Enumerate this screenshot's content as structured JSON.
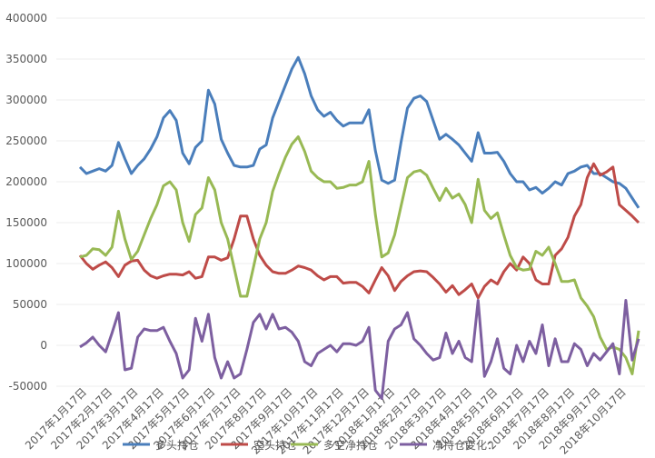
{
  "chart_data": {
    "type": "line",
    "categories": [
      "2017年1月17日",
      null,
      null,
      null,
      "2017年2月17日",
      null,
      null,
      null,
      "2017年3月17日",
      null,
      null,
      null,
      "2017年4月17日",
      null,
      null,
      null,
      "2017年5月17日",
      null,
      null,
      null,
      "2017年6月17日",
      null,
      null,
      null,
      "2017年7月17日",
      null,
      null,
      null,
      "2017年8月17日",
      null,
      null,
      null,
      "2017年9月17日",
      null,
      null,
      null,
      "2017年10月17日",
      null,
      null,
      null,
      "2017年11月17日",
      null,
      null,
      null,
      "2017年12月17日",
      null,
      null,
      null,
      "2018年1月17日",
      null,
      null,
      null,
      "2018年2月17日",
      null,
      null,
      null,
      "2018年3月17日",
      null,
      null,
      null,
      "2018年4月17日",
      null,
      null,
      null,
      "2018年5月17日",
      null,
      null,
      null,
      "2018年6月17日",
      null,
      null,
      null,
      "2018年7月17日",
      null,
      null,
      null,
      "2018年8月17日",
      null,
      null,
      null,
      "2018年9月17日",
      null,
      null,
      null,
      "2018年10月17日",
      null,
      null,
      null
    ],
    "series": [
      {
        "name": "多头持仓",
        "color": "#4a7ebb",
        "values": [
          218000,
          210000,
          213000,
          216000,
          213000,
          220000,
          248000,
          228000,
          210000,
          220000,
          228000,
          240000,
          255000,
          278000,
          287000,
          275000,
          235000,
          222000,
          242000,
          250000,
          312000,
          295000,
          252000,
          235000,
          220000,
          218000,
          218000,
          220000,
          240000,
          245000,
          278000,
          298000,
          318000,
          338000,
          352000,
          332000,
          305000,
          288000,
          280000,
          285000,
          275000,
          268000,
          272000,
          272000,
          272000,
          288000,
          238000,
          202000,
          198000,
          202000,
          248000,
          290000,
          302000,
          305000,
          298000,
          275000,
          252000,
          258000,
          252000,
          245000,
          235000,
          225000,
          260000,
          235000,
          235000,
          236000,
          225000,
          210000,
          200000,
          200000,
          190000,
          193000,
          186000,
          192000,
          200000,
          196000,
          210000,
          213000,
          218000,
          220000,
          210000,
          210000,
          205000,
          200000,
          198000,
          192000,
          180000,
          168000
        ]
      },
      {
        "name": "空头持仓",
        "color": "#be4b48",
        "values": [
          110000,
          100000,
          93000,
          98000,
          102000,
          95000,
          84000,
          98000,
          103000,
          104000,
          92000,
          85000,
          82000,
          85000,
          87000,
          87000,
          86000,
          90000,
          82000,
          84000,
          108000,
          108000,
          104000,
          107000,
          130000,
          158000,
          158000,
          130000,
          110000,
          98000,
          90000,
          88000,
          88000,
          92000,
          97000,
          95000,
          92000,
          85000,
          80000,
          84000,
          84000,
          76000,
          77000,
          77000,
          72000,
          64000,
          80000,
          95000,
          85000,
          67000,
          78000,
          85000,
          90000,
          91000,
          90000,
          83000,
          75000,
          65000,
          73000,
          62000,
          68000,
          75000,
          58000,
          72000,
          80000,
          75000,
          90000,
          100000,
          92000,
          108000,
          100000,
          80000,
          75000,
          75000,
          110000,
          118000,
          132000,
          158000,
          172000,
          205000,
          222000,
          208000,
          212000,
          218000,
          172000,
          165000,
          158000,
          150000
        ]
      },
      {
        "name": "多空净持仓",
        "color": "#98b954",
        "values": [
          108000,
          110000,
          118000,
          117000,
          110000,
          120000,
          164000,
          130000,
          105000,
          115000,
          135000,
          155000,
          172000,
          195000,
          200000,
          190000,
          150000,
          127000,
          160000,
          168000,
          205000,
          190000,
          150000,
          130000,
          95000,
          60000,
          60000,
          95000,
          130000,
          150000,
          188000,
          210000,
          230000,
          246000,
          255000,
          237000,
          213000,
          205000,
          200000,
          200000,
          192000,
          193000,
          196000,
          196000,
          200000,
          225000,
          160000,
          108000,
          113000,
          135000,
          170000,
          205000,
          212000,
          214000,
          208000,
          192000,
          177000,
          192000,
          180000,
          185000,
          172000,
          150000,
          203000,
          165000,
          155000,
          162000,
          135000,
          110000,
          95000,
          92000,
          93000,
          115000,
          110000,
          120000,
          100000,
          78000,
          78000,
          80000,
          58000,
          48000,
          35000,
          10000,
          -5000,
          -2000,
          -5000,
          -15000,
          -35000,
          18000
        ]
      },
      {
        "name": "净持仓变化：",
        "color": "#7d5fa0",
        "values": [
          -2000,
          3000,
          10000,
          0,
          -8000,
          15000,
          40000,
          -30000,
          -28000,
          10000,
          20000,
          18000,
          18000,
          22000,
          5000,
          -10000,
          -40000,
          -30000,
          33000,
          5000,
          38000,
          -15000,
          -40000,
          -20000,
          -40000,
          -35000,
          -5000,
          28000,
          38000,
          20000,
          38000,
          20000,
          22000,
          16000,
          5000,
          -20000,
          -25000,
          -10000,
          -5000,
          0,
          -8000,
          2000,
          2000,
          0,
          5000,
          22000,
          -55000,
          -65000,
          5000,
          20000,
          25000,
          40000,
          8000,
          0,
          -10000,
          -18000,
          -15000,
          15000,
          -10000,
          5000,
          -15000,
          -20000,
          55000,
          -38000,
          -20000,
          8000,
          -28000,
          -35000,
          0,
          -20000,
          5000,
          -10000,
          25000,
          -25000,
          8000,
          -20000,
          -20000,
          2000,
          -5000,
          -25000,
          -10000,
          -18000,
          -8000,
          2000,
          -35000,
          55000,
          -18000,
          8000
        ]
      }
    ],
    "ylim": [
      -50000,
      400000
    ],
    "yticks": [
      -50000,
      0,
      50000,
      100000,
      150000,
      200000,
      250000,
      300000,
      350000,
      400000
    ],
    "grid": true,
    "legend": "bottom"
  }
}
